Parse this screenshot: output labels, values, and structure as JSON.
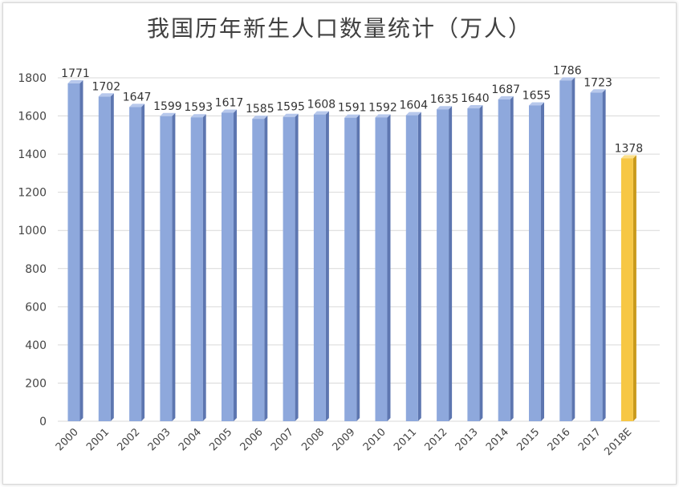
{
  "chart_data": {
    "type": "bar",
    "title": "我国历年新生人口数量统计（万人）",
    "categories": [
      "2000",
      "2001",
      "2002",
      "2003",
      "2004",
      "2005",
      "2006",
      "2007",
      "2008",
      "2009",
      "2010",
      "2011",
      "2012",
      "2013",
      "2014",
      "2015",
      "2016",
      "2017",
      "2018E"
    ],
    "values": [
      1771,
      1702,
      1647,
      1599,
      1593,
      1617,
      1585,
      1595,
      1608,
      1591,
      1592,
      1604,
      1635,
      1640,
      1687,
      1655,
      1786,
      1723,
      1378
    ],
    "ylim": [
      0,
      1800
    ],
    "yticks": [
      0,
      200,
      400,
      600,
      800,
      1000,
      1200,
      1400,
      1600,
      1800
    ],
    "grid": true,
    "xlabel": "",
    "ylabel": "",
    "colors": {
      "bar": "#8ea8dc",
      "bar_highlight": "#f7c744",
      "grid": "#d9d9d9"
    },
    "highlight_index": 18
  }
}
